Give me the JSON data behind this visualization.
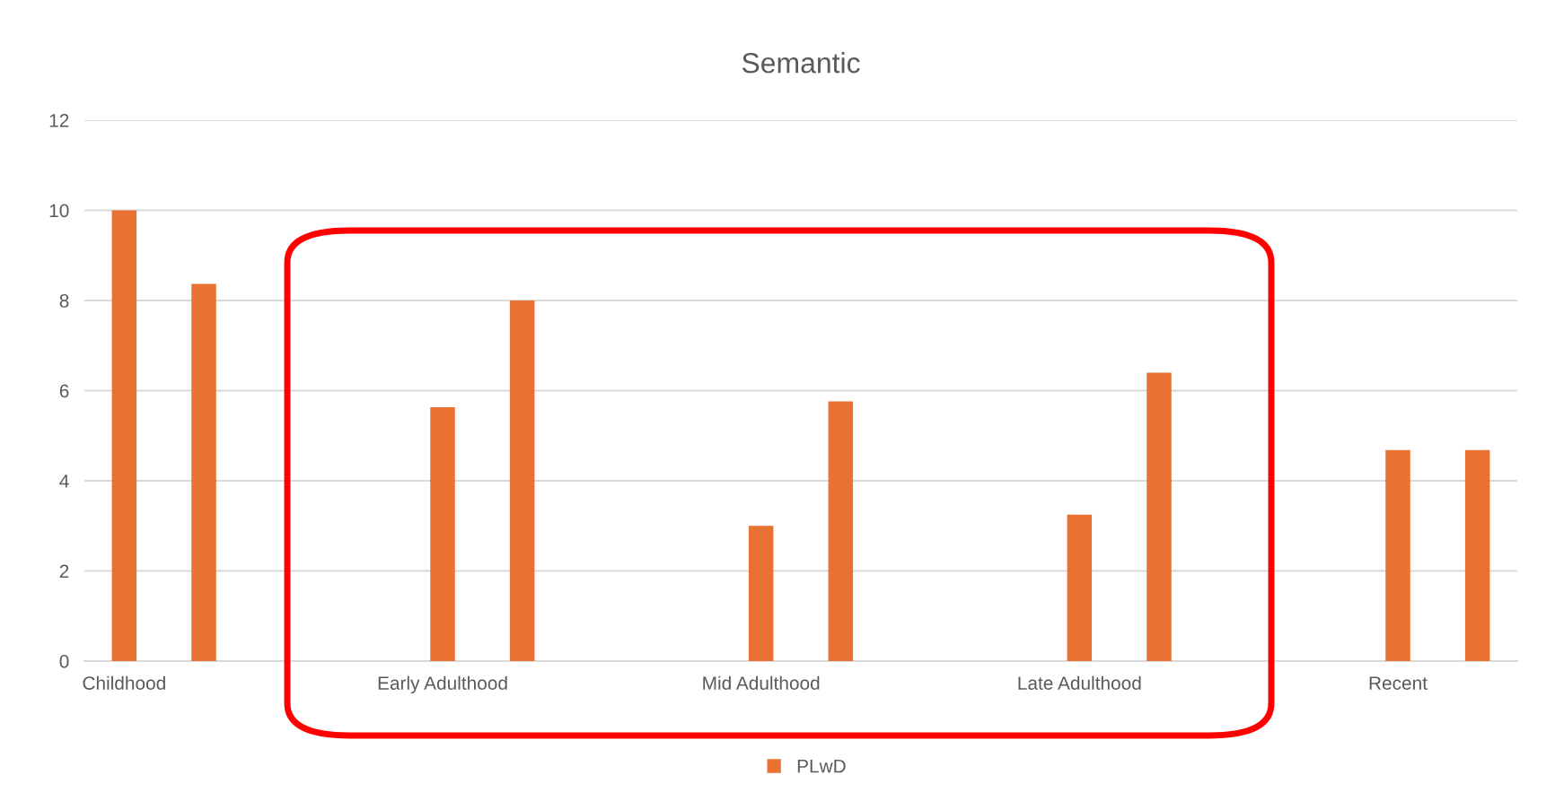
{
  "chart_data": {
    "type": "bar",
    "title": "Semantic",
    "categories": [
      "Childhood",
      null,
      null,
      null,
      "Early Adulthood",
      null,
      null,
      null,
      "Mid Adulthood",
      null,
      null,
      null,
      "Late Adulthood",
      null,
      null,
      null,
      "Recent",
      null
    ],
    "series": [
      {
        "name": "PLwD",
        "color": "#e97132",
        "values": [
          10,
          8.37,
          null,
          null,
          5.63,
          8,
          null,
          null,
          3.0,
          5.76,
          null,
          null,
          3.25,
          6.4,
          null,
          null,
          4.68,
          4.68
        ]
      }
    ],
    "ylim": [
      0,
      12
    ],
    "yticks": [
      0,
      2,
      4,
      6,
      8,
      10,
      12
    ],
    "grid": "y",
    "legend": "bottom"
  }
}
